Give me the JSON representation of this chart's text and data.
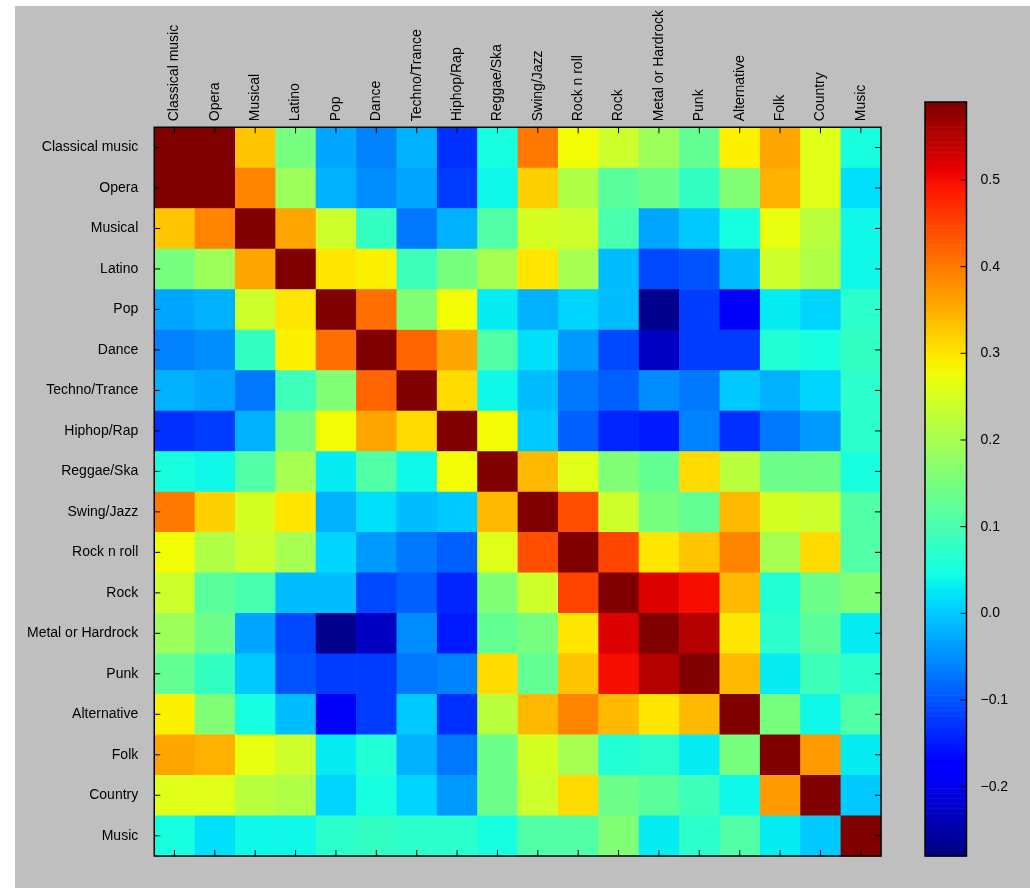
{
  "chart_data": {
    "type": "heatmap",
    "categories": [
      "Classical music",
      "Opera",
      "Musical",
      "Latino",
      "Pop",
      "Dance",
      "Techno/Trance",
      "Hiphop/Rap",
      "Reggae/Ska",
      "Swing/Jazz",
      "Rock n roll",
      "Rock",
      "Metal or Hardrock",
      "Punk",
      "Alternative",
      "Folk",
      "Country",
      "Music"
    ],
    "y_categories": [
      "Classical music",
      "Opera",
      "Musical",
      "Latino",
      "Pop",
      "Dance",
      "Techno/Trance",
      "Hiphop/Rap",
      "Reggae/Ska",
      "Swing/Jazz",
      "Rock n roll",
      "Rock",
      "Metal or Hardrock",
      "Punk",
      "Alternative",
      "Folk",
      "Country",
      "Music"
    ],
    "cells": [
      [
        0.59,
        0.59,
        0.33,
        0.15,
        -0.03,
        -0.06,
        -0.02,
        -0.13,
        0.05,
        0.4,
        0.28,
        0.24,
        0.19,
        0.13,
        0.29,
        0.36,
        0.26,
        0.05
      ],
      [
        0.59,
        0.59,
        0.39,
        0.19,
        -0.02,
        -0.05,
        -0.03,
        -0.12,
        0.04,
        0.32,
        0.21,
        0.12,
        0.14,
        0.08,
        0.16,
        0.35,
        0.26,
        0.02
      ],
      [
        0.33,
        0.39,
        0.59,
        0.36,
        0.24,
        0.08,
        -0.07,
        -0.02,
        0.11,
        0.25,
        0.24,
        0.1,
        -0.03,
        0.0,
        0.05,
        0.27,
        0.22,
        0.04
      ],
      [
        0.15,
        0.19,
        0.36,
        0.59,
        0.3,
        0.29,
        0.09,
        0.15,
        0.2,
        0.3,
        0.2,
        -0.01,
        -0.11,
        -0.1,
        -0.01,
        0.24,
        0.21,
        0.04
      ],
      [
        -0.03,
        -0.02,
        0.24,
        0.3,
        0.59,
        0.41,
        0.16,
        0.28,
        0.03,
        -0.02,
        0.01,
        -0.01,
        -0.27,
        -0.12,
        -0.19,
        0.03,
        0.01,
        0.07
      ],
      [
        -0.06,
        -0.05,
        0.08,
        0.29,
        0.41,
        0.59,
        0.42,
        0.36,
        0.11,
        0.02,
        -0.04,
        -0.11,
        -0.23,
        -0.12,
        -0.12,
        0.06,
        0.05,
        0.08
      ],
      [
        -0.02,
        -0.03,
        -0.07,
        0.09,
        0.16,
        0.42,
        0.59,
        0.31,
        0.04,
        -0.01,
        -0.07,
        -0.09,
        -0.05,
        -0.07,
        0.0,
        -0.02,
        0.01,
        0.07
      ],
      [
        -0.13,
        -0.12,
        -0.02,
        0.15,
        0.28,
        0.36,
        0.31,
        0.59,
        0.28,
        0.0,
        -0.09,
        -0.14,
        -0.15,
        -0.06,
        -0.13,
        -0.07,
        -0.04,
        0.07
      ],
      [
        0.05,
        0.04,
        0.11,
        0.2,
        0.03,
        0.11,
        0.04,
        0.28,
        0.59,
        0.34,
        0.26,
        0.16,
        0.13,
        0.31,
        0.22,
        0.14,
        0.14,
        0.05
      ],
      [
        0.4,
        0.32,
        0.25,
        0.3,
        -0.02,
        0.02,
        -0.01,
        0.0,
        0.34,
        0.59,
        0.44,
        0.24,
        0.15,
        0.13,
        0.34,
        0.25,
        0.24,
        0.11
      ],
      [
        0.28,
        0.21,
        0.24,
        0.2,
        0.01,
        -0.04,
        -0.07,
        -0.09,
        0.26,
        0.44,
        0.59,
        0.45,
        0.3,
        0.33,
        0.39,
        0.2,
        0.31,
        0.11
      ],
      [
        0.24,
        0.12,
        0.1,
        -0.01,
        -0.01,
        -0.11,
        -0.09,
        -0.14,
        0.16,
        0.24,
        0.45,
        0.59,
        0.52,
        0.5,
        0.34,
        0.06,
        0.14,
        0.16
      ],
      [
        0.19,
        0.14,
        -0.03,
        -0.11,
        -0.27,
        -0.23,
        -0.05,
        -0.15,
        0.13,
        0.15,
        0.3,
        0.52,
        0.59,
        0.55,
        0.3,
        0.07,
        0.12,
        0.03
      ],
      [
        0.13,
        0.08,
        0.0,
        -0.1,
        -0.12,
        -0.12,
        -0.07,
        -0.06,
        0.31,
        0.13,
        0.33,
        0.5,
        0.55,
        0.59,
        0.34,
        0.03,
        0.09,
        0.07
      ],
      [
        0.29,
        0.16,
        0.05,
        -0.01,
        -0.19,
        -0.12,
        0.0,
        -0.13,
        0.22,
        0.34,
        0.39,
        0.34,
        0.3,
        0.34,
        0.59,
        0.15,
        0.04,
        0.11
      ],
      [
        0.36,
        0.35,
        0.27,
        0.24,
        0.03,
        0.06,
        -0.02,
        -0.07,
        0.14,
        0.25,
        0.2,
        0.06,
        0.07,
        0.03,
        0.15,
        0.59,
        0.37,
        0.03
      ],
      [
        0.26,
        0.26,
        0.22,
        0.21,
        0.01,
        0.05,
        0.01,
        -0.04,
        0.14,
        0.24,
        0.31,
        0.14,
        0.12,
        0.09,
        0.04,
        0.37,
        0.59,
        0.0
      ],
      [
        0.05,
        0.02,
        0.04,
        0.04,
        0.07,
        0.08,
        0.07,
        0.07,
        0.05,
        0.11,
        0.11,
        0.16,
        0.03,
        0.07,
        0.11,
        0.03,
        0.0,
        0.59
      ]
    ],
    "clim": [
      -0.28,
      0.59
    ],
    "cticks": [
      {
        "value": -0.2,
        "label": "−0.2"
      },
      {
        "value": -0.1,
        "label": "−0.1"
      },
      {
        "value": 0,
        "label": "0.0"
      },
      0.1,
      0.2,
      0.3,
      0.4,
      0.5
    ]
  }
}
